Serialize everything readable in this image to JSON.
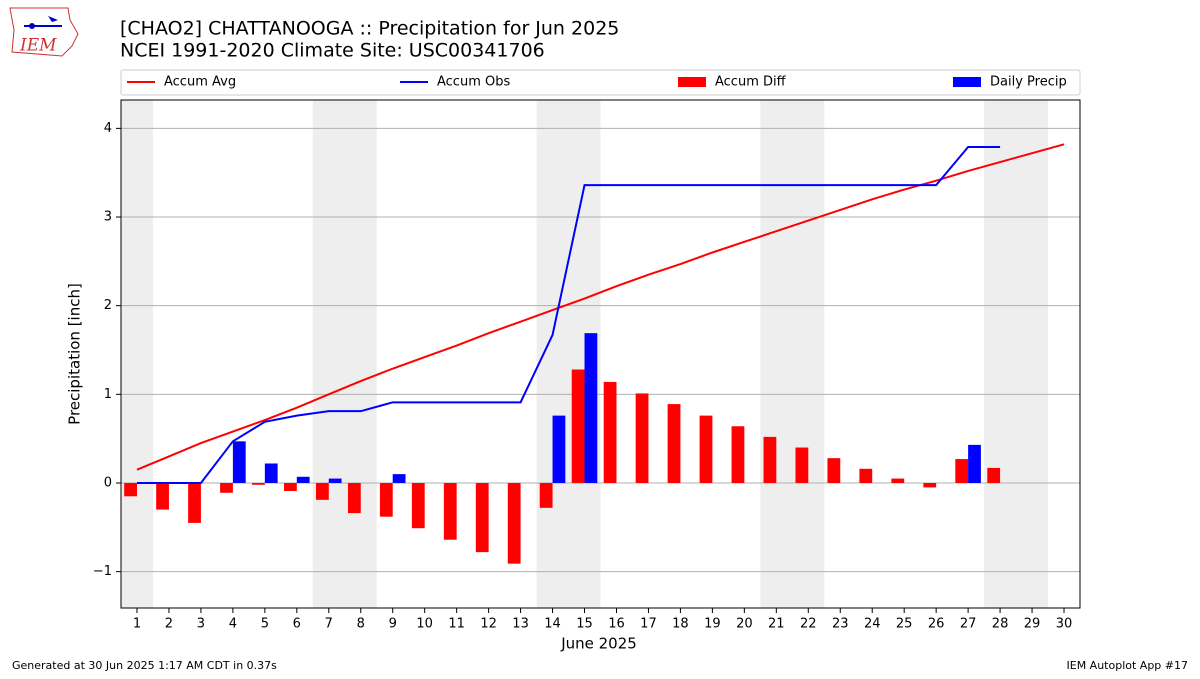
{
  "chart_data": {
    "type": "bar-line",
    "logo_text": "IEM",
    "title": "[CHAO2] CHATTANOOGA :: Precipitation for Jun 2025",
    "subtitle": "NCEI 1991-2020 Climate Site: USC00341706",
    "x_label": "June 2025",
    "y_label": "Precipitation [inch]",
    "footer_left": "Generated at 30 Jun 2025 1:17 AM CDT in 0.37s",
    "footer_right": "IEM Autoplot App #17",
    "x": [
      1,
      2,
      3,
      4,
      5,
      6,
      7,
      8,
      9,
      10,
      11,
      12,
      13,
      14,
      15,
      16,
      17,
      18,
      19,
      20,
      21,
      22,
      23,
      24,
      25,
      26,
      27,
      28,
      29,
      30
    ],
    "xlim": [
      0.5,
      30.5
    ],
    "xticks": [
      1,
      2,
      3,
      4,
      5,
      6,
      7,
      8,
      9,
      10,
      11,
      12,
      13,
      14,
      15,
      16,
      17,
      18,
      19,
      20,
      21,
      22,
      23,
      24,
      25,
      26,
      27,
      28,
      29,
      30
    ],
    "ylim": [
      -1.41,
      4.32
    ],
    "yticks": [
      {
        "value": -1,
        "label": "−1"
      },
      0,
      1,
      2,
      3,
      4
    ],
    "grid": true,
    "series": [
      {
        "name": "Accum Avg",
        "kind": "line",
        "color": "#ff0000",
        "values": [
          0.15,
          0.3,
          0.45,
          0.58,
          0.71,
          0.85,
          1.0,
          1.15,
          1.29,
          1.42,
          1.55,
          1.69,
          1.82,
          1.95,
          2.08,
          2.22,
          2.35,
          2.47,
          2.6,
          2.72,
          2.84,
          2.96,
          3.08,
          3.2,
          3.31,
          3.41,
          3.52,
          3.62,
          3.72,
          3.82
        ]
      },
      {
        "name": "Accum Obs",
        "kind": "line",
        "color": "#0000ff",
        "values": [
          0,
          0,
          0,
          0.47,
          0.69,
          0.76,
          0.81,
          0.81,
          0.91,
          0.91,
          0.91,
          0.91,
          0.91,
          1.67,
          3.36,
          3.36,
          3.36,
          3.36,
          3.36,
          3.36,
          3.36,
          3.36,
          3.36,
          3.36,
          3.36,
          3.36,
          3.79,
          3.79,
          null,
          null
        ]
      },
      {
        "name": "Accum Diff",
        "kind": "bar",
        "color": "#ff0000",
        "values": [
          -0.15,
          -0.3,
          -0.45,
          -0.11,
          -0.02,
          -0.09,
          -0.19,
          -0.34,
          -0.38,
          -0.51,
          -0.64,
          -0.78,
          -0.91,
          -0.28,
          1.28,
          1.14,
          1.01,
          0.89,
          0.76,
          0.64,
          0.52,
          0.4,
          0.28,
          0.16,
          0.05,
          -0.05,
          0.27,
          0.17,
          null,
          null
        ]
      },
      {
        "name": "Daily Precip",
        "kind": "bar",
        "color": "#0000ff",
        "values": [
          0,
          0,
          0,
          0.47,
          0.22,
          0.07,
          0.05,
          0,
          0.1,
          0,
          0,
          0,
          0,
          0.76,
          1.69,
          0,
          0,
          0,
          0,
          0,
          0,
          0,
          0,
          0,
          0,
          0,
          0.43,
          0,
          null,
          null
        ]
      }
    ]
  }
}
